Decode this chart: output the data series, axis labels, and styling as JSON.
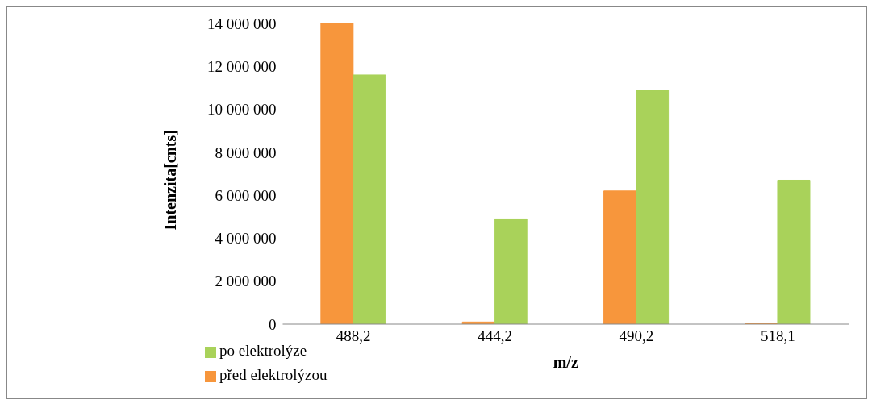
{
  "chart_data": {
    "type": "bar",
    "xlabel": "m/z",
    "ylabel": "Intenzita[cnts]",
    "categories": [
      "488,2",
      "444,2",
      "490,2",
      "518,1"
    ],
    "series": [
      {
        "name": "před elektrolýzou",
        "color": "#f7963c",
        "values": [
          14000000,
          100000,
          6200000,
          50000
        ]
      },
      {
        "name": "po elektrolýze",
        "color": "#a9d25a",
        "values": [
          11600000,
          4900000,
          10900000,
          6700000
        ]
      }
    ],
    "ylim": [
      0,
      14000000
    ],
    "yticks": [
      {
        "value": 0,
        "label": "0"
      },
      {
        "value": 2000000,
        "label": "2 000 000"
      },
      {
        "value": 4000000,
        "label": "4 000 000"
      },
      {
        "value": 6000000,
        "label": "6 000 000"
      },
      {
        "value": 8000000,
        "label": "8 000 000"
      },
      {
        "value": 10000000,
        "label": "10 000 000"
      },
      {
        "value": 12000000,
        "label": "12 000 000"
      },
      {
        "value": 14000000,
        "label": "14 000 000"
      }
    ],
    "grid": false,
    "legend": "bottom left"
  }
}
